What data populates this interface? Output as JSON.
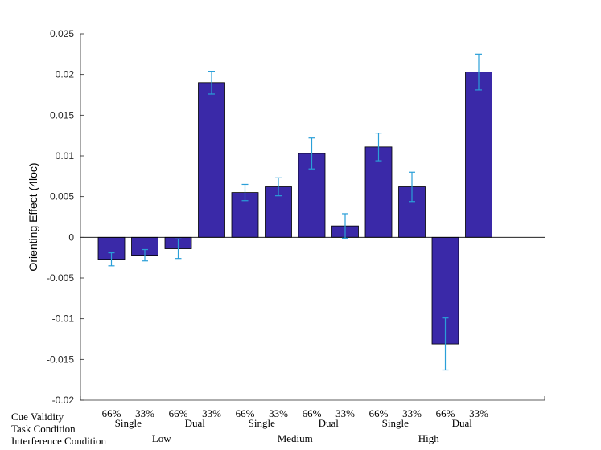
{
  "chart_data": {
    "type": "bar",
    "ylabel": "Orienting Effect (4loc)",
    "ylim": [
      -0.02,
      0.025
    ],
    "yticks": [
      0.025,
      0.02,
      0.015,
      0.01,
      0.005,
      0,
      -0.005,
      -0.01,
      -0.015,
      -0.02
    ],
    "ytick_labels": [
      "0.025",
      "0.02",
      "0.015",
      "0.01",
      "0.005",
      "0",
      "-0.005",
      "-0.01",
      "-0.015",
      "-0.02"
    ],
    "values": [
      -0.0027,
      -0.0022,
      -0.0014,
      0.019,
      0.0055,
      0.0062,
      0.0103,
      0.0014,
      0.0111,
      0.0062,
      -0.0131,
      0.0203
    ],
    "errors": [
      0.0008,
      0.0007,
      0.0012,
      0.0014,
      0.001,
      0.0011,
      0.0019,
      0.0015,
      0.0017,
      0.0018,
      0.0032,
      0.0022
    ],
    "bar_color": "#3a29a8",
    "error_color": "#2a9fd8",
    "row_labels": [
      "Cue Validity",
      "Task Condition",
      "Interference Condition"
    ],
    "cue_validity": [
      "66%",
      "33%",
      "66%",
      "33%",
      "66%",
      "33%",
      "66%",
      "33%",
      "66%",
      "33%",
      "66%",
      "33%"
    ],
    "task_condition": [
      "Single",
      "Dual",
      "Single",
      "Dual",
      "Single",
      "Dual"
    ],
    "interference_condition": [
      "Low",
      "Medium",
      "High"
    ]
  }
}
